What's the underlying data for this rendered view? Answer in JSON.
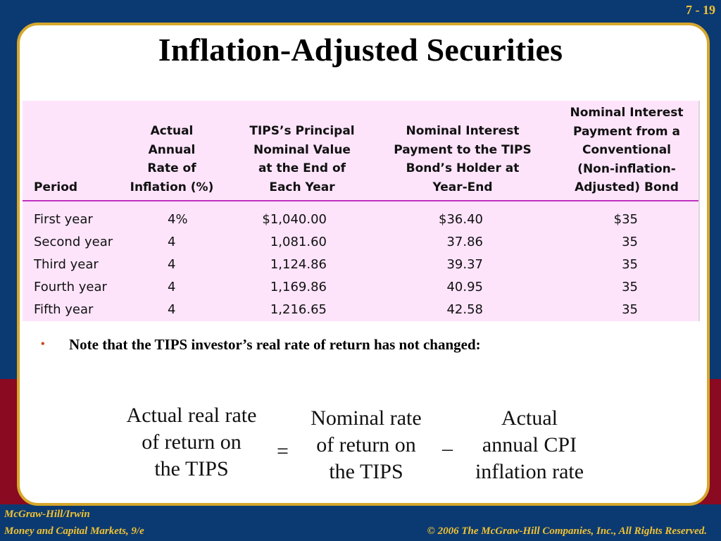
{
  "slide": {
    "number": "7 - 19",
    "title": "Inflation-Adjusted Securities"
  },
  "table": {
    "headers": [
      [
        "Period"
      ],
      [
        "Actual",
        "Annual",
        "Rate of",
        "Inflation (%)"
      ],
      [
        "TIPS’s Principal",
        "Nominal Value",
        "at the End of",
        "Each Year"
      ],
      [
        "Nominal Interest",
        "Payment to the TIPS",
        "Bond’s Holder at",
        "Year-End"
      ],
      [
        "Nominal Interest",
        "Payment from a",
        "Conventional",
        "(Non-inflation-",
        "Adjusted) Bond"
      ]
    ],
    "rows": [
      [
        "First year",
        "4%",
        "$1,040.00",
        "$36.40",
        "$35"
      ],
      [
        "Second year",
        "4",
        "1,081.60",
        "37.86",
        "35"
      ],
      [
        "Third year",
        "4",
        "1,124.86",
        "39.37",
        "35"
      ],
      [
        "Fourth year",
        "4",
        "1,169.86",
        "40.95",
        "35"
      ],
      [
        "Fifth year",
        "4",
        "1,216.65",
        "42.58",
        "35"
      ]
    ]
  },
  "note": {
    "bullet": "•",
    "text": "Note that the TIPS investor’s real rate of return has not changed:"
  },
  "equation": {
    "left": [
      "Actual real rate",
      "of return on",
      "the TIPS"
    ],
    "equals": "=",
    "middle": [
      "Nominal rate",
      "of return on",
      "the TIPS"
    ],
    "minus": "–",
    "right": [
      "Actual",
      "annual CPI",
      "inflation rate"
    ]
  },
  "footer": {
    "publisher": "McGraw-Hill/Irwin",
    "book": "Money and Capital Markets, 9/e",
    "copyright": "© 2006  The McGraw-Hill Companies, Inc., All Rights Reserved."
  }
}
